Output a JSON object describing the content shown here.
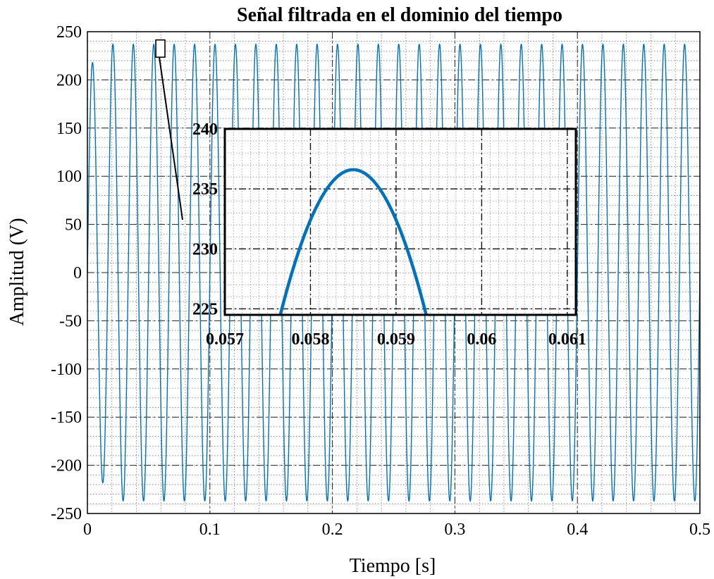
{
  "chart_data": {
    "type": "line",
    "title": "Señal filtrada en el dominio del tiempo",
    "xlabel": "Tiempo [s]",
    "ylabel": "Amplitud (V)",
    "xlim": [
      0,
      0.5
    ],
    "ylim": [
      -250,
      250
    ],
    "xticks": [
      "0",
      "0.1",
      "0.2",
      "0.3",
      "0.4",
      "0.5"
    ],
    "yticks": [
      "250",
      "200",
      "150",
      "100",
      "50",
      "0",
      "-50",
      "-100",
      "-150",
      "-200",
      "-250"
    ],
    "grid": true,
    "minor_grid": true,
    "series": [
      {
        "frequency_hz": 60,
        "amplitude_v": 237,
        "startup": {
          "t": [
            0,
            0.00417,
            0.0125
          ],
          "y": [
            0,
            40,
            217
          ]
        },
        "color": "#0072BD"
      }
    ],
    "inset": {
      "xlim": [
        0.057,
        0.0611
      ],
      "ylim": [
        224.5,
        240
      ],
      "xticks": [
        "0.057",
        "0.058",
        "0.059",
        "0.06",
        "0.061"
      ],
      "yticks": [
        "240",
        "235",
        "230",
        "225"
      ],
      "peak": {
        "t": 0.0585,
        "y": 236.6
      },
      "zoom_box": {
        "t": [
          0.057,
          0.061
        ],
        "y": [
          225,
          240
        ]
      },
      "line_color": "#0072BD"
    }
  }
}
